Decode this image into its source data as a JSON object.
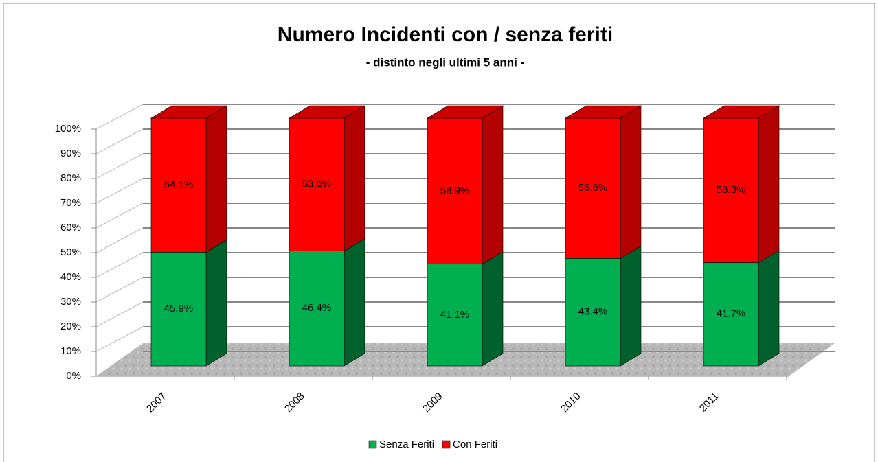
{
  "chart_data": {
    "type": "bar3d_stacked",
    "title": "Numero Incidenti con / senza feriti",
    "subtitle": "- distinto negli ultimi 5 anni -",
    "categories": [
      "2007",
      "2008",
      "2009",
      "2010",
      "2011"
    ],
    "series": [
      {
        "name": "Senza Feriti",
        "color": "#00b050",
        "values": [
          45.9,
          46.4,
          41.1,
          43.4,
          41.7
        ],
        "value_labels": [
          "45.9%",
          "46.4%",
          "41.1%",
          "43.4%",
          "41.7%"
        ]
      },
      {
        "name": "Con Feriti",
        "color": "#ff0000",
        "values": [
          54.1,
          53.6,
          58.9,
          56.6,
          58.3
        ],
        "value_labels": [
          "54.1%",
          "53.6%",
          "58.9%",
          "56.6%",
          "58.3%"
        ]
      }
    ],
    "ylim": [
      0,
      100
    ],
    "yticks": [
      {
        "value": 0,
        "label": "0%"
      },
      {
        "value": 10,
        "label": "10%"
      },
      {
        "value": 20,
        "label": "20%"
      },
      {
        "value": 30,
        "label": "30%"
      },
      {
        "value": 40,
        "label": "40%"
      },
      {
        "value": 50,
        "label": "50%"
      },
      {
        "value": 60,
        "label": "60%"
      },
      {
        "value": 70,
        "label": "70%"
      },
      {
        "value": 80,
        "label": "80%"
      },
      {
        "value": 90,
        "label": "90%"
      },
      {
        "value": 100,
        "label": "100%"
      }
    ],
    "grid": true,
    "legend": "bottom"
  }
}
